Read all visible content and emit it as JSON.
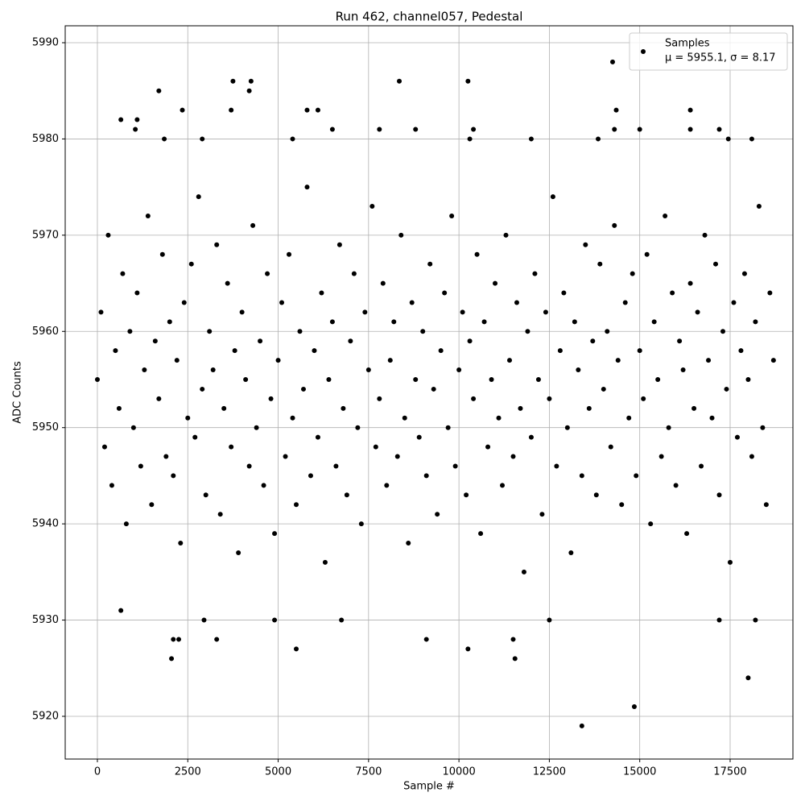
{
  "chart_data": {
    "type": "scatter",
    "title": "Run 462, channel057, Pedestal",
    "x_label": "Sample #",
    "y_label": "ADC Counts",
    "xlim": [
      -890,
      19237
    ],
    "ylim": [
      5915.56,
      5991.76
    ],
    "xticks": [
      0,
      2500,
      5000,
      7500,
      10000,
      12500,
      15000,
      17500
    ],
    "yticks": [
      5920,
      5930,
      5940,
      5950,
      5960,
      5970,
      5980,
      5990
    ],
    "grid": true,
    "legend": "upper right",
    "annotation": "μ = 5955.1, σ = 8.17",
    "series": [
      {
        "name": "Samples",
        "color": "#000000",
        "x": [
          0,
          100,
          200,
          300,
          400,
          500,
          600,
          700,
          800,
          900,
          1000,
          1100,
          1200,
          1300,
          1400,
          1500,
          1600,
          1700,
          1800,
          1900,
          2000,
          2100,
          2200,
          2300,
          2400,
          2500,
          2600,
          2700,
          2800,
          2900,
          3000,
          3100,
          3200,
          3300,
          3400,
          3500,
          3600,
          3700,
          3800,
          3900,
          4000,
          4100,
          4200,
          4300,
          4400,
          4500,
          4600,
          4700,
          4800,
          4900,
          5000,
          5100,
          5200,
          5300,
          5400,
          5500,
          5600,
          5700,
          5800,
          5900,
          6000,
          6100,
          6200,
          6300,
          6400,
          6500,
          6600,
          6700,
          6800,
          6900,
          7000,
          7100,
          7200,
          7300,
          7400,
          7500,
          7600,
          7700,
          7800,
          7900,
          8000,
          8100,
          8200,
          8300,
          8400,
          8500,
          8600,
          8700,
          8800,
          8900,
          9000,
          9100,
          9200,
          9300,
          9400,
          9500,
          9600,
          9700,
          9800,
          9900,
          10000,
          10100,
          10200,
          10300,
          10400,
          10500,
          10600,
          10700,
          10800,
          10900,
          11000,
          11100,
          11200,
          11300,
          11400,
          11500,
          11600,
          11700,
          11800,
          11900,
          12000,
          12100,
          12200,
          12300,
          12400,
          12500,
          12600,
          12700,
          12800,
          12900,
          13000,
          13100,
          13200,
          13300,
          13400,
          13500,
          13600,
          13700,
          13800,
          13900,
          14000,
          14100,
          14200,
          14300,
          14400,
          14500,
          14600,
          14700,
          14800,
          14900,
          15000,
          15100,
          15200,
          15300,
          15400,
          15500,
          15600,
          15700,
          15800,
          15900,
          16000,
          16100,
          16200,
          16300,
          16400,
          16500,
          16600,
          16700,
          16800,
          16900,
          17000,
          17100,
          17200,
          17300,
          17400,
          17500,
          17600,
          17700,
          17800,
          17900,
          18000,
          18100,
          18200,
          18300,
          18400,
          18500,
          18600,
          18700,
          1700,
          3750,
          4200,
          4250,
          8350,
          10250,
          14250,
          14350,
          13400,
          14850,
          18000,
          2050,
          11550,
          2100,
          2250,
          3300,
          9100,
          11500,
          5500,
          10250,
          650,
          12500,
          2950,
          4900,
          17200,
          18200,
          6750,
          3700,
          2350,
          5800,
          6100,
          16400,
          650,
          1100,
          1050,
          6500,
          7800,
          8800,
          10400,
          14300,
          15000,
          17200,
          16400,
          1850,
          2900,
          5400,
          10300,
          12000,
          13850,
          17450,
          18100
        ],
        "values": [
          5955,
          5962,
          5948,
          5970,
          5944,
          5958,
          5952,
          5966,
          5940,
          5960,
          5950,
          5964,
          5946,
          5956,
          5972,
          5942,
          5959,
          5953,
          5968,
          5947,
          5961,
          5945,
          5957,
          5938,
          5963,
          5951,
          5967,
          5949,
          5974,
          5954,
          5943,
          5960,
          5956,
          5969,
          5941,
          5952,
          5965,
          5948,
          5958,
          5937,
          5962,
          5955,
          5946,
          5971,
          5950,
          5959,
          5944,
          5966,
          5953,
          5939,
          5957,
          5963,
          5947,
          5968,
          5951,
          5942,
          5960,
          5954,
          5975,
          5945,
          5958,
          5949,
          5964,
          5936,
          5955,
          5961,
          5946,
          5969,
          5952,
          5943,
          5959,
          5966,
          5950,
          5940,
          5962,
          5956,
          5973,
          5948,
          5953,
          5965,
          5944,
          5957,
          5961,
          5947,
          5970,
          5951,
          5938,
          5963,
          5955,
          5949,
          5960,
          5945,
          5967,
          5954,
          5941,
          5958,
          5964,
          5950,
          5972,
          5946,
          5956,
          5962,
          5943,
          5959,
          5953,
          5968,
          5939,
          5961,
          5948,
          5955,
          5965,
          5951,
          5944,
          5970,
          5957,
          5947,
          5963,
          5952,
          5935,
          5960,
          5949,
          5966,
          5955,
          5941,
          5962,
          5953,
          5974,
          5946,
          5958,
          5964,
          5950,
          5937,
          5961,
          5956,
          5945,
          5969,
          5952,
          5959,
          5943,
          5967,
          5954,
          5960,
          5948,
          5971,
          5957,
          5942,
          5963,
          5951,
          5966,
          5945,
          5958,
          5953,
          5968,
          5940,
          5961,
          5955,
          5947,
          5972,
          5950,
          5964,
          5944,
          5959,
          5956,
          5939,
          5965,
          5952,
          5962,
          5946,
          5970,
          5957,
          5951,
          5967,
          5943,
          5960,
          5954,
          5936,
          5963,
          5949,
          5958,
          5966,
          5955,
          5947,
          5961,
          5973,
          5950,
          5942,
          5964,
          5957,
          5985,
          5986,
          5985,
          5986,
          5986,
          5986,
          5988,
          5983,
          5919,
          5921,
          5924,
          5926,
          5926,
          5928,
          5928,
          5928,
          5928,
          5928,
          5927,
          5927,
          5931,
          5930,
          5930,
          5930,
          5930,
          5930,
          5930,
          5983,
          5983,
          5983,
          5983,
          5983,
          5982,
          5982,
          5981,
          5981,
          5981,
          5981,
          5981,
          5981,
          5981,
          5981,
          5981,
          5980,
          5980,
          5980,
          5980,
          5980,
          5980,
          5980,
          5980
        ]
      }
    ]
  }
}
